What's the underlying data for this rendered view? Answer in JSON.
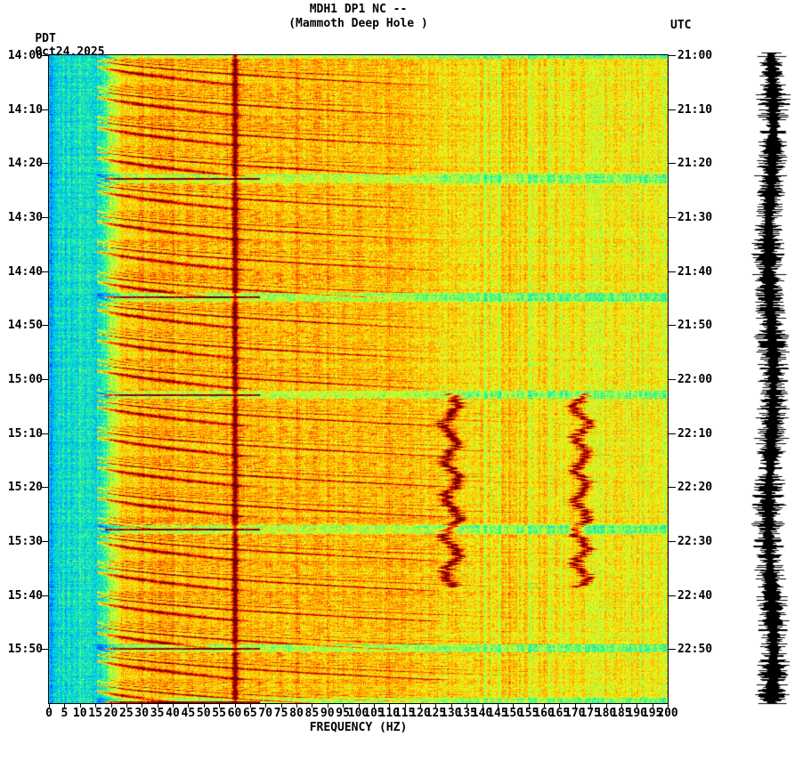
{
  "header": {
    "title": "MDH1 DP1 NC --",
    "subtitle": "(Mammoth Deep Hole )",
    "tz_left": "PDT",
    "date": "Oct24,2025",
    "tz_right": "UTC"
  },
  "axes": {
    "xlabel": "FREQUENCY (HZ)"
  },
  "chart_data": {
    "type": "heatmap",
    "subtype": "spectrogram",
    "station": "MDH1 DP1 NC",
    "station_description": "Mammoth Deep Hole",
    "date": "Oct24,2025",
    "xlabel": "FREQUENCY (HZ)",
    "x_unit": "Hz",
    "x_range": [
      0,
      200
    ],
    "x_ticks": [
      0,
      5,
      10,
      15,
      20,
      25,
      30,
      35,
      40,
      45,
      50,
      55,
      60,
      65,
      70,
      75,
      80,
      85,
      90,
      95,
      100,
      105,
      110,
      115,
      120,
      125,
      130,
      135,
      140,
      145,
      150,
      155,
      160,
      165,
      170,
      175,
      180,
      185,
      190,
      195,
      200
    ],
    "left_timezone": "PDT",
    "right_timezone": "UTC",
    "time_span_minutes": 120,
    "left_time_ticks": [
      "14:00",
      "14:10",
      "14:20",
      "14:30",
      "14:40",
      "14:50",
      "15:00",
      "15:10",
      "15:20",
      "15:30",
      "15:40",
      "15:50"
    ],
    "right_time_ticks": [
      "21:00",
      "21:10",
      "21:20",
      "21:30",
      "21:40",
      "21:50",
      "22:00",
      "22:10",
      "22:20",
      "22:30",
      "22:40",
      "22:50"
    ],
    "colormap": [
      {
        "v": 0.0,
        "c": "#000090"
      },
      {
        "v": 0.1,
        "c": "#0040FF"
      },
      {
        "v": 0.22,
        "c": "#00B4FF"
      },
      {
        "v": 0.32,
        "c": "#00E6C8"
      },
      {
        "v": 0.42,
        "c": "#64FF64"
      },
      {
        "v": 0.52,
        "c": "#D8FF32"
      },
      {
        "v": 0.6,
        "c": "#FFE600"
      },
      {
        "v": 0.7,
        "c": "#FF9600"
      },
      {
        "v": 0.8,
        "c": "#FF3C00"
      },
      {
        "v": 0.88,
        "c": "#C80000"
      },
      {
        "v": 1.0,
        "c": "#640000"
      }
    ],
    "features": {
      "low_freq_quiet_band_hz": [
        0,
        18
      ],
      "mains_hum_line_hz": 60,
      "grid_line_step_hz": 10,
      "tremor_burst_boundaries_pdt": [
        "14:23",
        "14:45",
        "15:03",
        "15:28",
        "15:50"
      ],
      "chirp_period_min": 5.6,
      "narrowband_tracks_hz": [
        130,
        172
      ],
      "narrowband_track_time_pdt": [
        "15:03",
        "15:38"
      ],
      "amplitude_trace": {
        "position": "right",
        "color": "#000000"
      }
    }
  }
}
